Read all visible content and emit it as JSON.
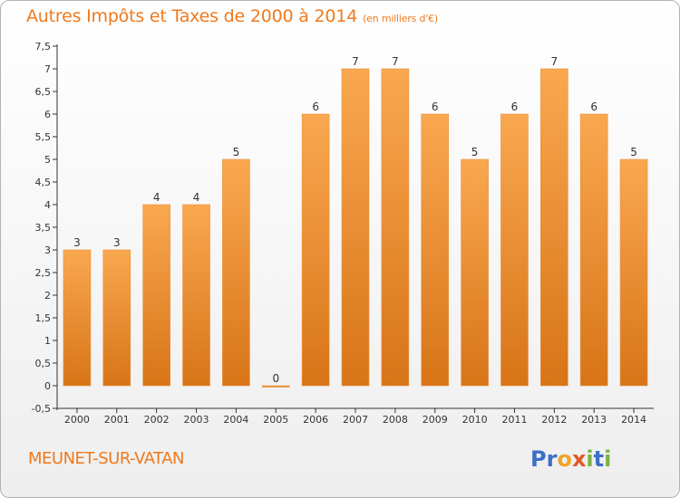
{
  "header": {
    "title": "Autres Impôts et Taxes de 2000 à 2014",
    "subtitle": "(en milliers d'€)"
  },
  "footer": {
    "commune": "MEUNET-SUR-VATAN"
  },
  "logo": {
    "letters": [
      "P",
      "r",
      "o",
      "x",
      "i",
      "t",
      "i"
    ],
    "colors": [
      "#3d6fc4",
      "#3d6fc4",
      "#f2a32a",
      "#e05a25",
      "#7cb342",
      "#3d6fc4",
      "#7cb342"
    ]
  },
  "chart_data": {
    "type": "bar",
    "categories": [
      "2000",
      "2001",
      "2002",
      "2003",
      "2004",
      "2005",
      "2006",
      "2007",
      "2008",
      "2009",
      "2010",
      "2011",
      "2012",
      "2013",
      "2014"
    ],
    "values": [
      3,
      3,
      4,
      4,
      5,
      0,
      6,
      7,
      7,
      6,
      5,
      6,
      7,
      6,
      5
    ],
    "data_labels": [
      "3",
      "3",
      "4",
      "4",
      "5",
      "0",
      "6",
      "7",
      "7",
      "6",
      "5",
      "6",
      "7",
      "6",
      "5"
    ],
    "ylim": [
      -0.5,
      7.5
    ],
    "yticks": [
      -0.5,
      0,
      0.5,
      1,
      1.5,
      2,
      2.5,
      3,
      3.5,
      4,
      4.5,
      5,
      5.5,
      6,
      6.5,
      7,
      7.5
    ],
    "ytick_labels": [
      "-0,5",
      "0",
      "0,5",
      "1",
      "1,5",
      "2",
      "2,5",
      "3",
      "3,5",
      "4",
      "4,5",
      "5",
      "5,5",
      "6",
      "6,5",
      "7",
      "7,5"
    ],
    "title": "Autres Impôts et Taxes de 2000 à 2014",
    "xlabel": "",
    "ylabel": "",
    "grid": false,
    "colors": {
      "bar_top": "#f9a850",
      "bar_bottom": "#d87418",
      "bar_edge": "#e8913c",
      "text": "#333333",
      "axis": "#333333"
    }
  }
}
